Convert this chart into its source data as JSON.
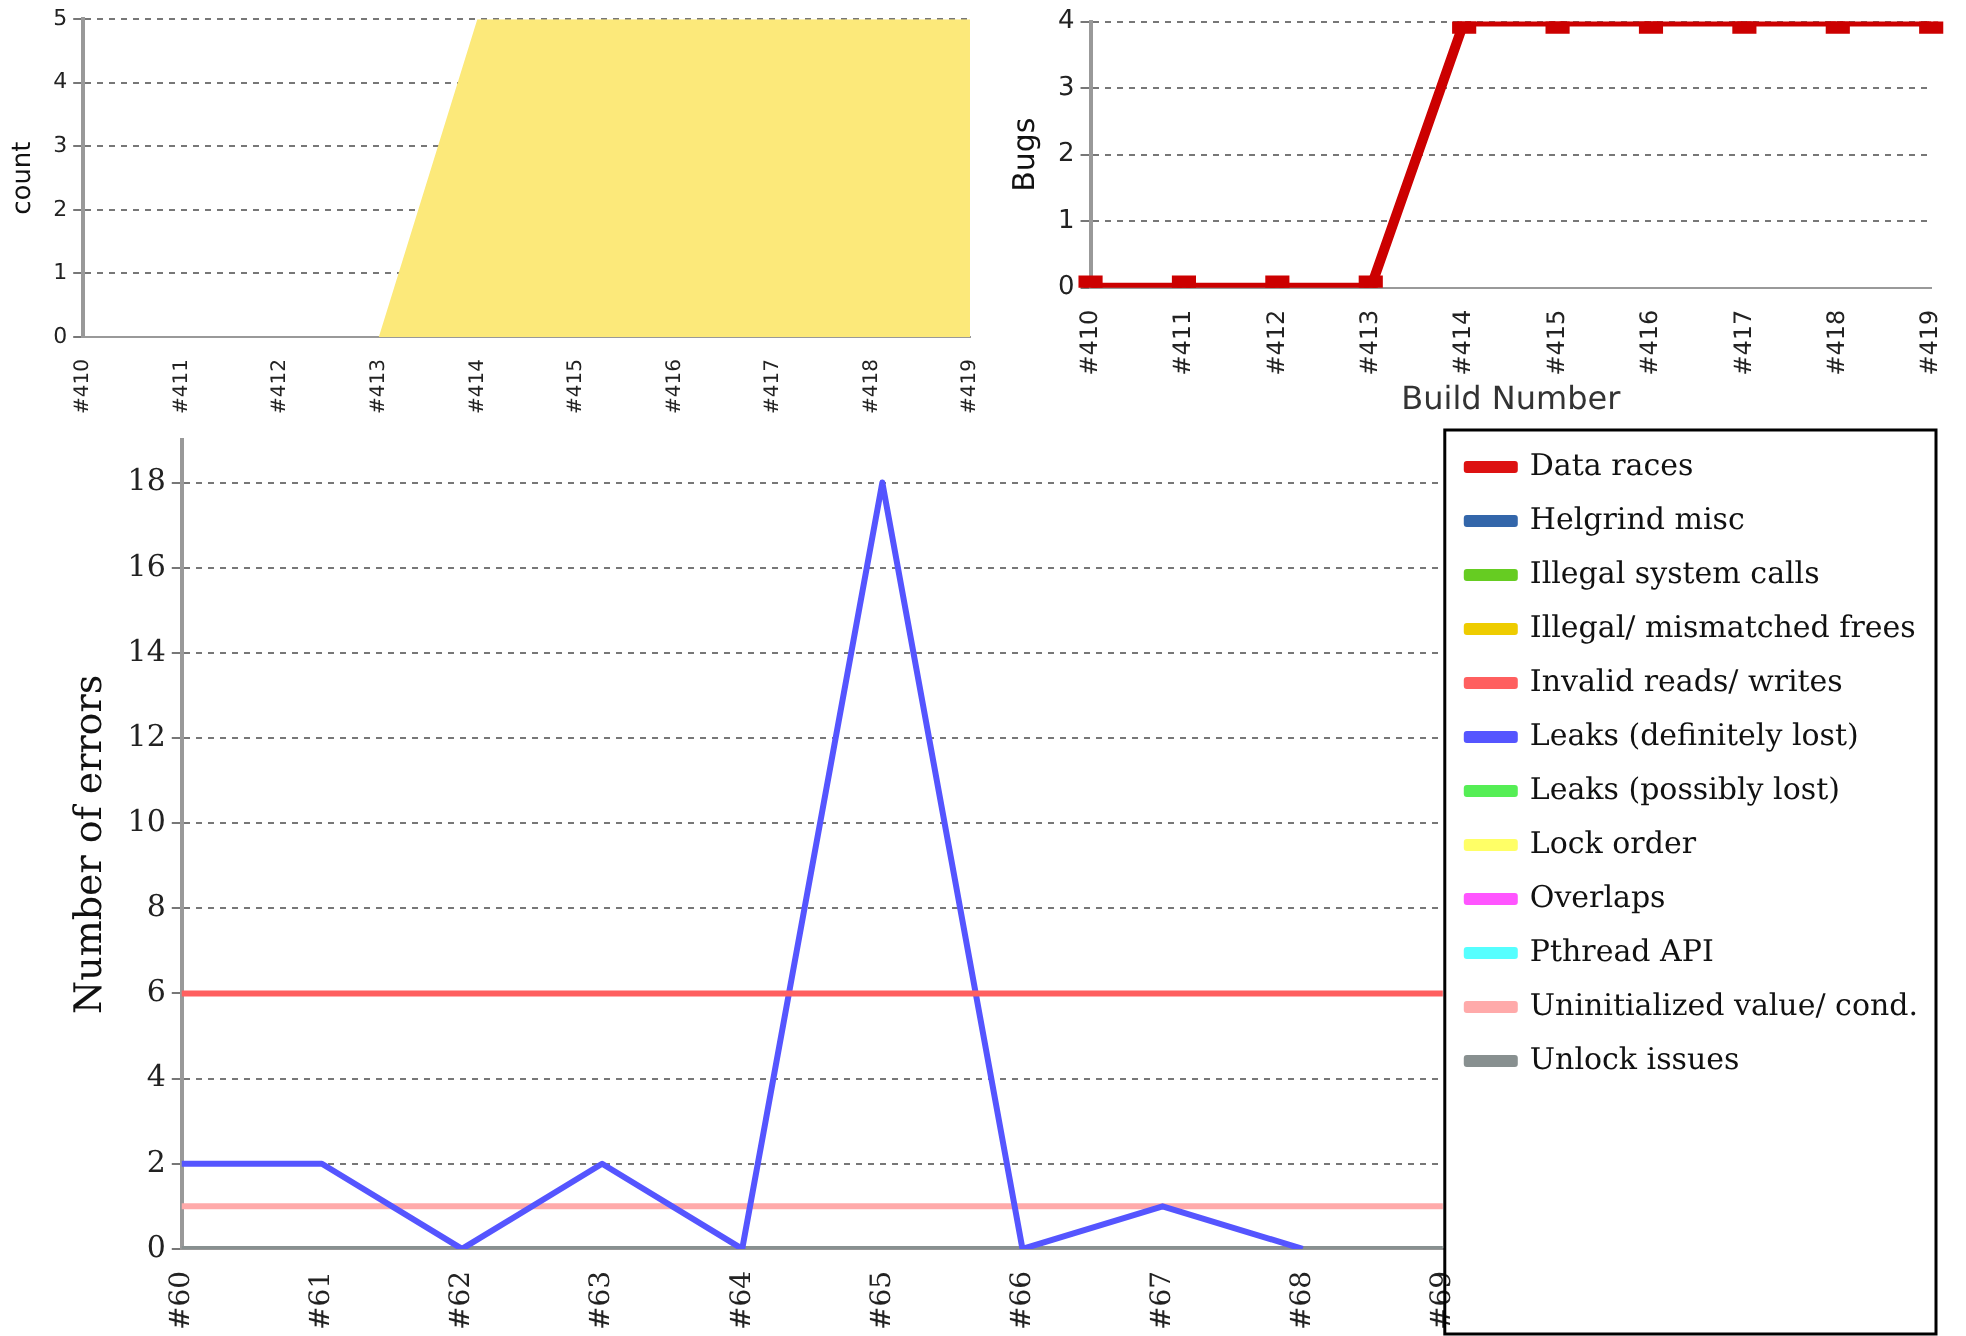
{
  "chart_data": [
    {
      "type": "area",
      "ylabel": "count",
      "categories": [
        "#410",
        "#411",
        "#412",
        "#413",
        "#414",
        "#415",
        "#416",
        "#417",
        "#418",
        "#419"
      ],
      "values": [
        0,
        0,
        0,
        0,
        5,
        5,
        5,
        5,
        5,
        5
      ],
      "color": "#fce97a",
      "ylim": [
        0,
        5
      ],
      "yticks": [
        0,
        1,
        2,
        3,
        4,
        5
      ],
      "grid": "y",
      "legend": false
    },
    {
      "type": "line",
      "ylabel": "Bugs",
      "xlabel": "Build Number",
      "categories": [
        "#410",
        "#411",
        "#412",
        "#413",
        "#414",
        "#415",
        "#416",
        "#417",
        "#418",
        "#419"
      ],
      "values": [
        0,
        0,
        0,
        0,
        4,
        4,
        4,
        4,
        4,
        4
      ],
      "color": "#cc0000",
      "marker": "square",
      "ylim": [
        0,
        4
      ],
      "yticks": [
        0,
        1,
        2,
        3,
        4
      ],
      "grid": "y",
      "legend": false
    },
    {
      "type": "line",
      "ylabel": "Number of errors",
      "categories": [
        "#60",
        "#61",
        "#62",
        "#63",
        "#64",
        "#65",
        "#66",
        "#67",
        "#68",
        "#69"
      ],
      "ylim": [
        0,
        19
      ],
      "yticks": [
        0,
        2,
        4,
        6,
        8,
        10,
        12,
        14,
        16,
        18
      ],
      "grid": "y",
      "legend": "right",
      "marker": "none",
      "series": [
        {
          "name": "Data races",
          "color": "#dd1111",
          "values": [
            null,
            null,
            null,
            null,
            null,
            null,
            null,
            null,
            null,
            null
          ]
        },
        {
          "name": "Helgrind misc",
          "color": "#3366aa",
          "values": [
            null,
            null,
            null,
            null,
            null,
            null,
            null,
            null,
            null,
            null
          ]
        },
        {
          "name": "Illegal system calls",
          "color": "#66cc22",
          "values": [
            null,
            null,
            null,
            null,
            null,
            null,
            null,
            null,
            null,
            null
          ]
        },
        {
          "name": "Illegal/ mismatched frees",
          "color": "#eecc00",
          "values": [
            null,
            null,
            null,
            null,
            null,
            null,
            null,
            null,
            null,
            null
          ]
        },
        {
          "name": "Invalid reads/ writes",
          "color": "#ff5f5f",
          "values": [
            6,
            6,
            6,
            6,
            6,
            6,
            6,
            6,
            6,
            6
          ]
        },
        {
          "name": "Leaks (definitely lost)",
          "color": "#5555ff",
          "values": [
            2,
            2,
            0,
            2,
            0,
            18,
            0,
            1,
            0,
            null
          ]
        },
        {
          "name": "Leaks (possibly lost)",
          "color": "#55ee55",
          "values": [
            null,
            null,
            null,
            null,
            null,
            null,
            null,
            null,
            null,
            null
          ]
        },
        {
          "name": "Lock order",
          "color": "#ffff66",
          "values": [
            null,
            null,
            null,
            null,
            null,
            null,
            null,
            null,
            null,
            null
          ]
        },
        {
          "name": "Overlaps",
          "color": "#ff55ff",
          "values": [
            null,
            null,
            null,
            null,
            null,
            null,
            null,
            null,
            null,
            null
          ]
        },
        {
          "name": "Pthread API",
          "color": "#55ffff",
          "values": [
            null,
            null,
            null,
            null,
            null,
            null,
            null,
            null,
            null,
            null
          ]
        },
        {
          "name": "Uninitialized value/ cond.",
          "color": "#ffaaaa",
          "values": [
            1,
            1,
            1,
            1,
            1,
            1,
            1,
            1,
            1,
            1
          ]
        },
        {
          "name": "Unlock issues",
          "color": "#889090",
          "values": [
            0,
            0,
            0,
            0,
            0,
            0,
            0,
            0,
            0,
            0
          ]
        }
      ]
    }
  ]
}
